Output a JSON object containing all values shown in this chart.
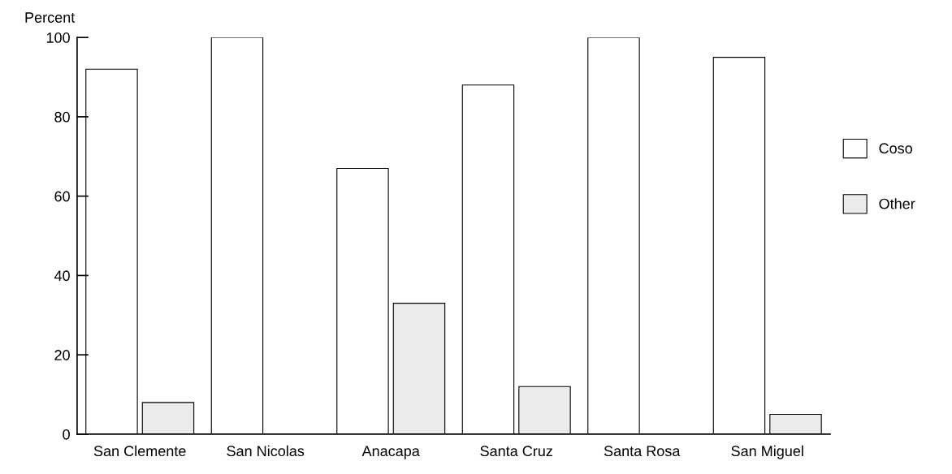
{
  "chart_data": {
    "type": "bar",
    "ylabel": "Percent",
    "categories": [
      "San Clemente",
      "San Nicolas",
      "Anacapa",
      "Santa Cruz",
      "Santa Rosa",
      "San Miguel"
    ],
    "series": [
      {
        "name": "Coso",
        "color": "#ffffff",
        "values": [
          92,
          100,
          67,
          88,
          100,
          95
        ]
      },
      {
        "name": "Other",
        "color": "#ebebeb",
        "values": [
          8,
          0,
          33,
          12,
          0,
          5
        ]
      }
    ],
    "ylim": [
      0,
      100
    ],
    "yticks": [
      0,
      20,
      40,
      60,
      80,
      100
    ],
    "grid": false,
    "legend": "right"
  }
}
